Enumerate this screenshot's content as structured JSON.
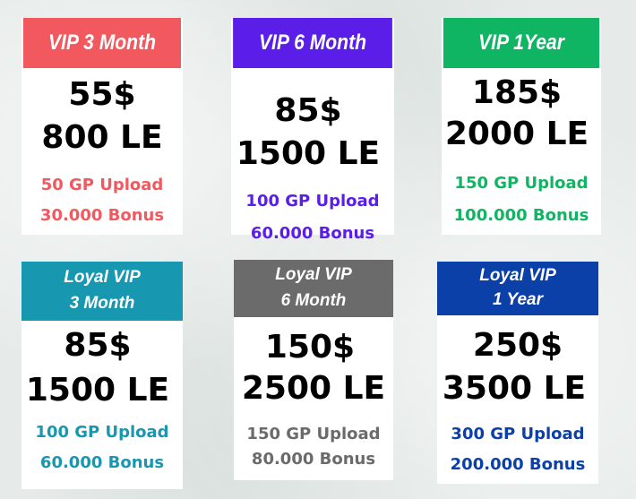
{
  "plans": [
    {
      "title_lines": [
        "VIP 3 Month"
      ],
      "price_usd": "55$",
      "price_le": "800 LE",
      "upload": "50 GP Upload",
      "bonus": "30.000 Bonus",
      "color": "#f2595e"
    },
    {
      "title_lines": [
        "VIP 6 Month"
      ],
      "price_usd": "85$",
      "price_le": "1500 LE",
      "upload": "100 GP Upload",
      "bonus": "60.000 Bonus",
      "color": "#5b1de8"
    },
    {
      "title_lines": [
        "VIP 1Year"
      ],
      "price_usd": "185$",
      "price_le": "2000 LE",
      "upload": "150 GP Upload",
      "bonus": "100.000 Bonus",
      "color": "#0fb563"
    },
    {
      "title_lines": [
        "Loyal VIP",
        "3 Month"
      ],
      "price_usd": "85$",
      "price_le": "1500 LE",
      "upload": "100 GP Upload",
      "bonus": "60.000 Bonus",
      "color": "#1897b0"
    },
    {
      "title_lines": [
        "Loyal VIP",
        "6 Month"
      ],
      "price_usd": "150$",
      "price_le": "2500 LE",
      "upload": "150 GP Upload",
      "bonus": "80.000 Bonus",
      "color": "#6b6b6b"
    },
    {
      "title_lines": [
        "Loyal VIP",
        "1 Year"
      ],
      "price_usd": "250$",
      "price_le": "3500 LE",
      "upload": "300 GP Upload",
      "bonus": "200.000 Bonus",
      "color": "#0a40a8"
    }
  ]
}
